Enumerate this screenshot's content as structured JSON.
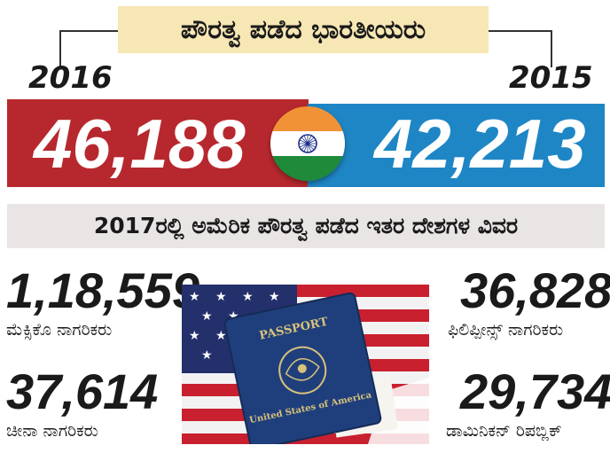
{
  "header": {
    "title": "ಪೌರತ್ವ ಪಡೆದ ಭಾರತೀಯರು"
  },
  "india": [
    {
      "year": "2016",
      "value": "46,188"
    },
    {
      "year": "2015",
      "value": "42,213"
    }
  ],
  "subheader": {
    "title": "2017ರಲ್ಲಿ ಅಮೆರಿಕ ಪೌರತ್ವ ಪಡೆದ ಇತರ ದೇಶಗಳ ವಿವರ"
  },
  "countries": [
    {
      "value": "1,18,559",
      "label": "ಮೆಕ್ಸಿಕೊ ನಾಗರಿಕರು"
    },
    {
      "value": "36,828",
      "label": "ಫಿಲಿಪ್ಪೀನ್ಸ್ ನಾಗರಿಕರು"
    },
    {
      "value": "37,614",
      "label": "ಚೀನಾ ನಾಗರಿಕರು"
    },
    {
      "value": "29,734",
      "label": "ಡಾಮಿನಿಕನ್ ರಿಪಬ್ಲಿಕ್"
    }
  ],
  "passport": {
    "title": "PASSPORT",
    "country": "United States of America"
  },
  "colors": {
    "red_band": "#b7282e",
    "blue_band": "#1f86c5",
    "title_bg": "#f7e7b4",
    "subheader_bg": "#e8e5e4"
  },
  "icons": {
    "flag": "india-flag-icon",
    "photo": "us-passport-on-flag-image"
  }
}
